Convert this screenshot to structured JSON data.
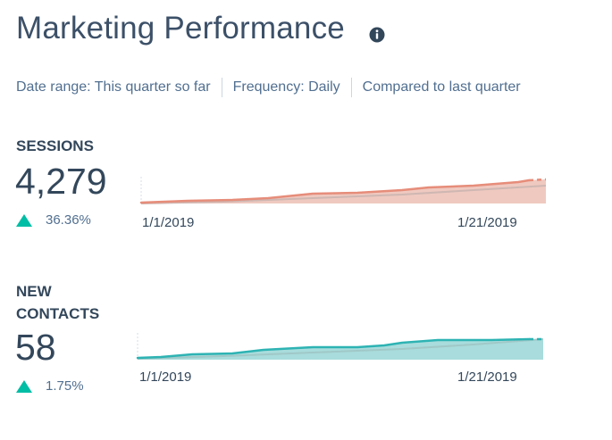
{
  "header": {
    "title": "Marketing Performance",
    "info_icon": "info-icon"
  },
  "filters": {
    "date_range": "Date range: This quarter so far",
    "frequency": "Frequency: Daily",
    "comparison": "Compared to last quarter"
  },
  "metrics": [
    {
      "label_lines": [
        "SESSIONS"
      ],
      "value": "4,279",
      "change": "36.36%",
      "trend": "up",
      "trend_icon": "arrow-up-icon",
      "x_labels": [
        "1/1/2019",
        "1/21/2019"
      ],
      "colors": {
        "line": "#e68d7a",
        "fill": "#efc9c0",
        "comparison": "#cfb7b2"
      }
    },
    {
      "label_lines": [
        "NEW",
        "CONTACTS"
      ],
      "value": "58",
      "change": "1.75%",
      "trend": "up",
      "trend_icon": "arrow-up-icon",
      "x_labels": [
        "1/1/2019",
        "1/21/2019"
      ],
      "colors": {
        "line": "#2eb3b3",
        "fill": "#a9dcdc",
        "comparison": "#a0c8c8"
      }
    }
  ],
  "colors": {
    "positive": "#00bda5",
    "text": "#33475b",
    "muted": "#516f90"
  }
}
